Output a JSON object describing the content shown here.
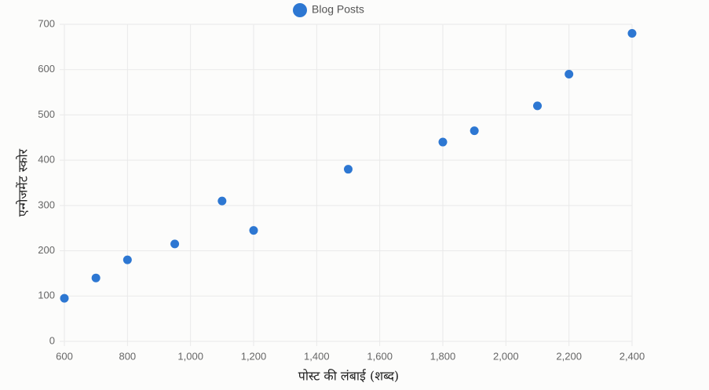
{
  "chart_data": {
    "type": "scatter",
    "x_label": "पोस्ट की लंबाई (शब्द)",
    "y_label": "एन्गेजमेंट स्कोर",
    "x": [
      600,
      700,
      800,
      950,
      1100,
      1200,
      1500,
      1800,
      1900,
      2100,
      2200,
      2400
    ],
    "series": [
      {
        "name": "Blog Posts",
        "color": "#2d77d2",
        "values": [
          95,
          140,
          180,
          215,
          310,
          245,
          380,
          440,
          465,
          520,
          590,
          680
        ]
      }
    ],
    "xlim": [
      600,
      2400
    ],
    "xticks": [
      600,
      800,
      {
        "value": 1000,
        "label": "1,000"
      },
      {
        "value": 1200,
        "label": "1,200"
      },
      {
        "value": 1400,
        "label": "1,400"
      },
      {
        "value": 1600,
        "label": "1,600"
      },
      {
        "value": 1800,
        "label": "1,800"
      },
      {
        "value": 2000,
        "label": "2,000"
      },
      {
        "value": 2200,
        "label": "2,200"
      },
      {
        "value": 2400,
        "label": "2,400"
      }
    ],
    "ylim": [
      0,
      700
    ],
    "yticks": [
      0,
      100,
      200,
      300,
      400,
      500,
      600,
      700
    ],
    "grid": true
  }
}
